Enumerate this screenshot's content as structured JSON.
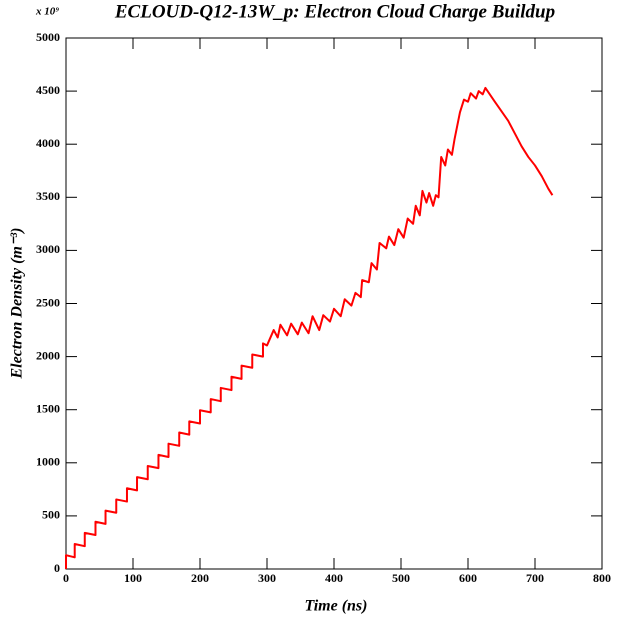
{
  "chart_data": {
    "type": "line",
    "title": "ECLOUD-Q12-13W_p: Electron Cloud Charge Buildup",
    "xlabel": "Time (ns)",
    "ylabel": "Electron Density (m⁻³)",
    "y_multiplier": "x 10⁹",
    "x": [
      0,
      0,
      13,
      13,
      28,
      28,
      44,
      44,
      59,
      59,
      75,
      75,
      91,
      91,
      106,
      106,
      122,
      122,
      138,
      138,
      153,
      153,
      169,
      169,
      184,
      184,
      200,
      200,
      216,
      216,
      231,
      231,
      247,
      247,
      262,
      262,
      278,
      278,
      294,
      294,
      300,
      310,
      316,
      320,
      330,
      336,
      346,
      352,
      362,
      368,
      378,
      384,
      394,
      400,
      410,
      416,
      426,
      432,
      440,
      442,
      452,
      456,
      464,
      468,
      478,
      482,
      490,
      496,
      504,
      510,
      518,
      522,
      528,
      532,
      538,
      542,
      548,
      552,
      556,
      560,
      566,
      570,
      576,
      580,
      588,
      594,
      600,
      604,
      612,
      616,
      622,
      626,
      640,
      660,
      670,
      680,
      690,
      700,
      710,
      720,
      726
    ],
    "series": [
      {
        "color": "#ff0000",
        "values": [
          0,
          130,
          110,
          235,
          215,
          340,
          320,
          445,
          425,
          550,
          530,
          655,
          635,
          760,
          740,
          865,
          845,
          970,
          950,
          1075,
          1055,
          1180,
          1160,
          1285,
          1265,
          1390,
          1370,
          1495,
          1475,
          1600,
          1580,
          1705,
          1685,
          1810,
          1790,
          1915,
          1895,
          2020,
          2000,
          2125,
          2105,
          2250,
          2180,
          2300,
          2200,
          2310,
          2210,
          2320,
          2220,
          2380,
          2250,
          2390,
          2330,
          2450,
          2380,
          2540,
          2480,
          2600,
          2560,
          2720,
          2700,
          2880,
          2820,
          3070,
          3020,
          3130,
          3050,
          3200,
          3120,
          3300,
          3250,
          3420,
          3330,
          3560,
          3450,
          3540,
          3420,
          3520,
          3500,
          3880,
          3800,
          3950,
          3900,
          4050,
          4300,
          4420,
          4400,
          4480,
          4430,
          4500,
          4470,
          4530,
          4400,
          4220,
          4100,
          3980,
          3880,
          3800,
          3700,
          3580,
          3520
        ]
      }
    ],
    "xlim": [
      0,
      800
    ],
    "xticks": [
      0,
      100,
      200,
      300,
      400,
      500,
      600,
      700,
      800
    ],
    "ylim": [
      0,
      5000
    ],
    "yticks": [
      0,
      500,
      1000,
      1500,
      2000,
      2500,
      3000,
      3500,
      4000,
      4500,
      5000
    ]
  }
}
